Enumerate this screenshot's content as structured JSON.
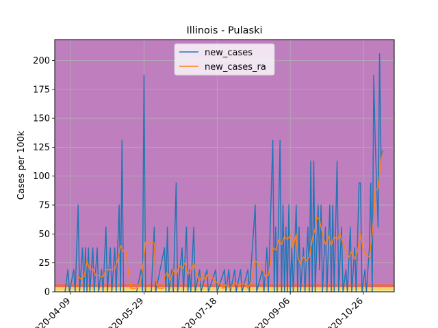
{
  "chart_data": {
    "type": "line",
    "title": "Illinois - Pulaski",
    "xlabel": "",
    "ylabel": "Cases per 100k",
    "ylim": [
      0,
      218
    ],
    "grid": true,
    "legend_position": "top-center",
    "x_start": "2020-03-29",
    "x_end": "2020-11-16",
    "x_ticks": [
      "2020-04-09",
      "2020-05-29",
      "2020-07-18",
      "2020-09-06",
      "2020-10-26"
    ],
    "y_ticks": [
      0,
      25,
      50,
      75,
      100,
      125,
      150,
      175,
      200
    ],
    "background_bands": [
      {
        "from": 0,
        "to": 1,
        "color": "#ffffa0"
      },
      {
        "from": 1,
        "to": 4,
        "color": "#f5d26c"
      },
      {
        "from": 4,
        "to": 7,
        "color": "#e86a5a"
      },
      {
        "from": 7,
        "to": 218,
        "color": "#bf7fbf"
      }
    ],
    "series": [
      {
        "name": "new_cases",
        "color": "#1f77b4",
        "points": [
          [
            "2020-04-05",
            0
          ],
          [
            "2020-04-07",
            19
          ],
          [
            "2020-04-08",
            0
          ],
          [
            "2020-04-11",
            19
          ],
          [
            "2020-04-12",
            0
          ],
          [
            "2020-04-14",
            75
          ],
          [
            "2020-04-15",
            0
          ],
          [
            "2020-04-17",
            38
          ],
          [
            "2020-04-18",
            0
          ],
          [
            "2020-04-19",
            38
          ],
          [
            "2020-04-20",
            0
          ],
          [
            "2020-04-21",
            38
          ],
          [
            "2020-04-22",
            0
          ],
          [
            "2020-04-24",
            38
          ],
          [
            "2020-04-25",
            0
          ],
          [
            "2020-04-27",
            38
          ],
          [
            "2020-04-28",
            0
          ],
          [
            "2020-04-30",
            19
          ],
          [
            "2020-05-01",
            0
          ],
          [
            "2020-05-03",
            56
          ],
          [
            "2020-05-04",
            0
          ],
          [
            "2020-05-06",
            38
          ],
          [
            "2020-05-07",
            0
          ],
          [
            "2020-05-09",
            38
          ],
          [
            "2020-05-10",
            0
          ],
          [
            "2020-05-12",
            75
          ],
          [
            "2020-05-13",
            0
          ],
          [
            "2020-05-14",
            131
          ],
          [
            "2020-05-15",
            0
          ],
          [
            "2020-05-18",
            0
          ],
          [
            "2020-05-20",
            0
          ],
          [
            "2020-05-24",
            0
          ],
          [
            "2020-05-27",
            19
          ],
          [
            "2020-05-28",
            0
          ],
          [
            "2020-05-29",
            187
          ],
          [
            "2020-05-30",
            0
          ],
          [
            "2020-06-03",
            0
          ],
          [
            "2020-06-05",
            56
          ],
          [
            "2020-06-06",
            0
          ],
          [
            "2020-06-12",
            38
          ],
          [
            "2020-06-13",
            0
          ],
          [
            "2020-06-14",
            56
          ],
          [
            "2020-06-15",
            0
          ],
          [
            "2020-06-17",
            19
          ],
          [
            "2020-06-18",
            0
          ],
          [
            "2020-06-20",
            94
          ],
          [
            "2020-06-21",
            0
          ],
          [
            "2020-06-24",
            38
          ],
          [
            "2020-06-25",
            0
          ],
          [
            "2020-06-27",
            56
          ],
          [
            "2020-06-28",
            0
          ],
          [
            "2020-06-29",
            19
          ],
          [
            "2020-06-30",
            0
          ],
          [
            "2020-07-02",
            56
          ],
          [
            "2020-07-03",
            0
          ],
          [
            "2020-07-06",
            19
          ],
          [
            "2020-07-07",
            0
          ],
          [
            "2020-07-11",
            19
          ],
          [
            "2020-07-12",
            0
          ],
          [
            "2020-07-17",
            19
          ],
          [
            "2020-07-18",
            0
          ],
          [
            "2020-07-23",
            19
          ],
          [
            "2020-07-24",
            0
          ],
          [
            "2020-07-26",
            19
          ],
          [
            "2020-07-27",
            0
          ],
          [
            "2020-07-30",
            19
          ],
          [
            "2020-07-31",
            0
          ],
          [
            "2020-08-03",
            19
          ],
          [
            "2020-08-04",
            0
          ],
          [
            "2020-08-08",
            19
          ],
          [
            "2020-08-09",
            0
          ],
          [
            "2020-08-12",
            56
          ],
          [
            "2020-08-13",
            75
          ],
          [
            "2020-08-14",
            0
          ],
          [
            "2020-08-18",
            19
          ],
          [
            "2020-08-19",
            0
          ],
          [
            "2020-08-21",
            38
          ],
          [
            "2020-08-22",
            0
          ],
          [
            "2020-08-25",
            131
          ],
          [
            "2020-08-26",
            0
          ],
          [
            "2020-08-27",
            56
          ],
          [
            "2020-08-28",
            0
          ],
          [
            "2020-08-30",
            131
          ],
          [
            "2020-08-31",
            0
          ],
          [
            "2020-09-01",
            75
          ],
          [
            "2020-09-02",
            0
          ],
          [
            "2020-09-03",
            56
          ],
          [
            "2020-09-04",
            0
          ],
          [
            "2020-09-05",
            75
          ],
          [
            "2020-09-06",
            0
          ],
          [
            "2020-09-07",
            38
          ],
          [
            "2020-09-08",
            0
          ],
          [
            "2020-09-10",
            75
          ],
          [
            "2020-09-11",
            0
          ],
          [
            "2020-09-12",
            56
          ],
          [
            "2020-09-13",
            0
          ],
          [
            "2020-09-15",
            38
          ],
          [
            "2020-09-16",
            0
          ],
          [
            "2020-09-18",
            56
          ],
          [
            "2020-09-19",
            0
          ],
          [
            "2020-09-20",
            113
          ],
          [
            "2020-09-21",
            0
          ],
          [
            "2020-09-22",
            113
          ],
          [
            "2020-09-23",
            0
          ],
          [
            "2020-09-25",
            75
          ],
          [
            "2020-09-26",
            19
          ],
          [
            "2020-09-27",
            75
          ],
          [
            "2020-09-28",
            0
          ],
          [
            "2020-09-30",
            56
          ],
          [
            "2020-10-01",
            0
          ],
          [
            "2020-10-03",
            75
          ],
          [
            "2020-10-04",
            0
          ],
          [
            "2020-10-05",
            75
          ],
          [
            "2020-10-06",
            0
          ],
          [
            "2020-10-08",
            113
          ],
          [
            "2020-10-09",
            0
          ],
          [
            "2020-10-11",
            56
          ],
          [
            "2020-10-12",
            0
          ],
          [
            "2020-10-14",
            19
          ],
          [
            "2020-10-15",
            0
          ],
          [
            "2020-10-17",
            56
          ],
          [
            "2020-10-18",
            0
          ],
          [
            "2020-10-20",
            38
          ],
          [
            "2020-10-21",
            0
          ],
          [
            "2020-10-23",
            94
          ],
          [
            "2020-10-24",
            94
          ],
          [
            "2020-10-25",
            0
          ],
          [
            "2020-10-27",
            19
          ],
          [
            "2020-10-28",
            0
          ],
          [
            "2020-10-30",
            38
          ],
          [
            "2020-10-31",
            94
          ],
          [
            "2020-11-01",
            0
          ],
          [
            "2020-11-02",
            187
          ],
          [
            "2020-11-03",
            131
          ],
          [
            "2020-11-05",
            56
          ],
          [
            "2020-11-06",
            206
          ],
          [
            "2020-11-07",
            113
          ],
          [
            "2020-11-08",
            122
          ]
        ]
      },
      {
        "name": "new_cases_ra",
        "color": "#ff7f0e",
        "points": [
          [
            "2020-04-13",
            4
          ],
          [
            "2020-04-14",
            13
          ],
          [
            "2020-04-16",
            11
          ],
          [
            "2020-04-18",
            13
          ],
          [
            "2020-04-20",
            27
          ],
          [
            "2020-04-22",
            19
          ],
          [
            "2020-04-24",
            20
          ],
          [
            "2020-04-26",
            14
          ],
          [
            "2020-04-28",
            14
          ],
          [
            "2020-05-01",
            13
          ],
          [
            "2020-05-03",
            19
          ],
          [
            "2020-05-05",
            19
          ],
          [
            "2020-05-07",
            19
          ],
          [
            "2020-05-09",
            20
          ],
          [
            "2020-05-11",
            27
          ],
          [
            "2020-05-13",
            40
          ],
          [
            "2020-05-15",
            35
          ],
          [
            "2020-05-17",
            34
          ],
          [
            "2020-05-18",
            20
          ],
          [
            "2020-05-20",
            3
          ],
          [
            "2020-05-24",
            3
          ],
          [
            "2020-05-27",
            10
          ],
          [
            "2020-05-29",
            30
          ],
          [
            "2020-05-30",
            43
          ],
          [
            "2020-06-02",
            42
          ],
          [
            "2020-06-04",
            43
          ],
          [
            "2020-06-05",
            42
          ],
          [
            "2020-06-06",
            10
          ],
          [
            "2020-06-08",
            3
          ],
          [
            "2020-06-11",
            3
          ],
          [
            "2020-06-12",
            13
          ],
          [
            "2020-06-14",
            17
          ],
          [
            "2020-06-16",
            10
          ],
          [
            "2020-06-18",
            19
          ],
          [
            "2020-06-20",
            14
          ],
          [
            "2020-06-22",
            23
          ],
          [
            "2020-06-24",
            20
          ],
          [
            "2020-06-26",
            25
          ],
          [
            "2020-06-28",
            15
          ],
          [
            "2020-06-30",
            18
          ],
          [
            "2020-07-02",
            25
          ],
          [
            "2020-07-04",
            15
          ],
          [
            "2020-07-06",
            9
          ],
          [
            "2020-07-08",
            16
          ],
          [
            "2020-07-10",
            10
          ],
          [
            "2020-07-12",
            16
          ],
          [
            "2020-07-14",
            13
          ],
          [
            "2020-07-16",
            10
          ],
          [
            "2020-07-18",
            8
          ],
          [
            "2020-07-20",
            7
          ],
          [
            "2020-07-22",
            3
          ],
          [
            "2020-07-24",
            6
          ],
          [
            "2020-07-27",
            3
          ],
          [
            "2020-07-30",
            8
          ],
          [
            "2020-08-02",
            5
          ],
          [
            "2020-08-05",
            8
          ],
          [
            "2020-08-08",
            3
          ],
          [
            "2020-08-10",
            8
          ],
          [
            "2020-08-12",
            20
          ],
          [
            "2020-08-13",
            27
          ],
          [
            "2020-08-16",
            22
          ],
          [
            "2020-08-18",
            19
          ],
          [
            "2020-08-20",
            13
          ],
          [
            "2020-08-22",
            14
          ],
          [
            "2020-08-25",
            38
          ],
          [
            "2020-08-27",
            36
          ],
          [
            "2020-08-29",
            45
          ],
          [
            "2020-08-31",
            41
          ],
          [
            "2020-09-02",
            48
          ],
          [
            "2020-09-04",
            45
          ],
          [
            "2020-09-06",
            49
          ],
          [
            "2020-09-08",
            39
          ],
          [
            "2020-09-10",
            50
          ],
          [
            "2020-09-11",
            30
          ],
          [
            "2020-09-13",
            24
          ],
          [
            "2020-09-15",
            30
          ],
          [
            "2020-09-17",
            27
          ],
          [
            "2020-09-19",
            30
          ],
          [
            "2020-09-21",
            45
          ],
          [
            "2020-09-23",
            55
          ],
          [
            "2020-09-24",
            65
          ],
          [
            "2020-09-26",
            62
          ],
          [
            "2020-09-28",
            50
          ],
          [
            "2020-09-30",
            41
          ],
          [
            "2020-10-02",
            48
          ],
          [
            "2020-10-04",
            40
          ],
          [
            "2020-10-06",
            48
          ],
          [
            "2020-10-08",
            45
          ],
          [
            "2020-10-10",
            50
          ],
          [
            "2020-10-12",
            42
          ],
          [
            "2020-10-14",
            36
          ],
          [
            "2020-10-16",
            30
          ],
          [
            "2020-10-18",
            35
          ],
          [
            "2020-10-20",
            28
          ],
          [
            "2020-10-22",
            36
          ],
          [
            "2020-10-24",
            50
          ],
          [
            "2020-10-26",
            35
          ],
          [
            "2020-10-28",
            32
          ],
          [
            "2020-10-30",
            30
          ],
          [
            "2020-11-01",
            50
          ],
          [
            "2020-11-02",
            65
          ],
          [
            "2020-11-03",
            88
          ],
          [
            "2020-11-05",
            89
          ],
          [
            "2020-11-07",
            113
          ],
          [
            "2020-11-08",
            120
          ]
        ]
      }
    ]
  }
}
